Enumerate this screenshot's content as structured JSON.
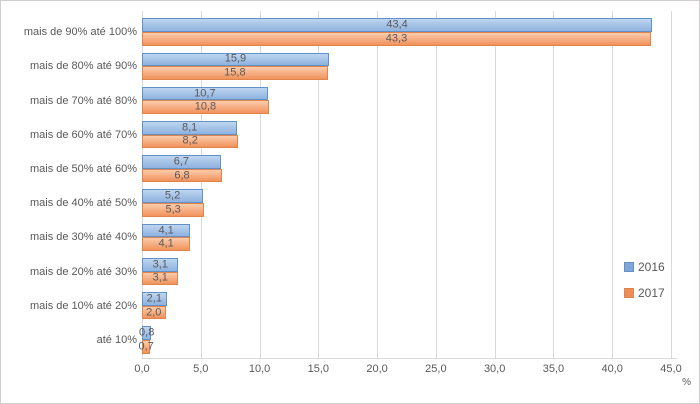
{
  "chart_data": {
    "type": "bar",
    "orientation": "horizontal",
    "title": "",
    "categories": [
      "mais de 90% até 100%",
      "mais de 80% até 90%",
      "mais de 70% até 80%",
      "mais de 60% até 70%",
      "mais de 50% até 60%",
      "mais de 40% até 50%",
      "mais de 30% até 40%",
      "mais de 20% até 30%",
      "mais de 10% até 20%",
      "até 10%"
    ],
    "series": [
      {
        "name": "2016",
        "color": "blue",
        "values": [
          43.4,
          15.9,
          10.7,
          8.1,
          6.7,
          5.2,
          4.1,
          3.1,
          2.1,
          0.8
        ],
        "labels": [
          "43,4",
          "15,9",
          "10,7",
          "8,1",
          "6,7",
          "5,2",
          "4,1",
          "3,1",
          "2,1",
          "0,8"
        ]
      },
      {
        "name": "2017",
        "color": "orange",
        "values": [
          43.3,
          15.8,
          10.8,
          8.2,
          6.8,
          5.3,
          4.1,
          3.1,
          2.0,
          0.7
        ],
        "labels": [
          "43,3",
          "15,8",
          "10,8",
          "8,2",
          "6,8",
          "5,3",
          "4,1",
          "3,1",
          "2,0",
          "0,7"
        ]
      }
    ],
    "xlabel": "%",
    "xlim": [
      0,
      45
    ],
    "xtick_values": [
      0,
      5,
      10,
      15,
      20,
      25,
      30,
      35,
      40,
      45
    ],
    "xtick_labels": [
      "0,0",
      "5,0",
      "10,0",
      "15,0",
      "20,0",
      "25,0",
      "30,0",
      "35,0",
      "40,0",
      "45,0"
    ],
    "grid": "vertical",
    "legend_position": "right",
    "legend_entries": [
      "2016",
      "2017"
    ]
  },
  "legend": {
    "items": [
      {
        "label": "2016",
        "color": "blue"
      },
      {
        "label": "2017",
        "color": "orange"
      }
    ]
  },
  "colors": {
    "blue_fill_top": "#bfd5f0",
    "blue_fill_mid": "#a3c2e6",
    "blue_fill_bottom": "#8fb1de",
    "blue_border": "#6091c9",
    "blue_swatch": "#7fa8d9",
    "orange_fill_top": "#fbcdac",
    "orange_fill_mid": "#f6ac80",
    "orange_fill_bottom": "#f0935b",
    "orange_border": "#e08449",
    "orange_swatch": "#ed8d5d",
    "grid": "#d9d9d9",
    "axis_text": "#595959",
    "label_text": "#595959",
    "chart_border": "#d0cece"
  }
}
